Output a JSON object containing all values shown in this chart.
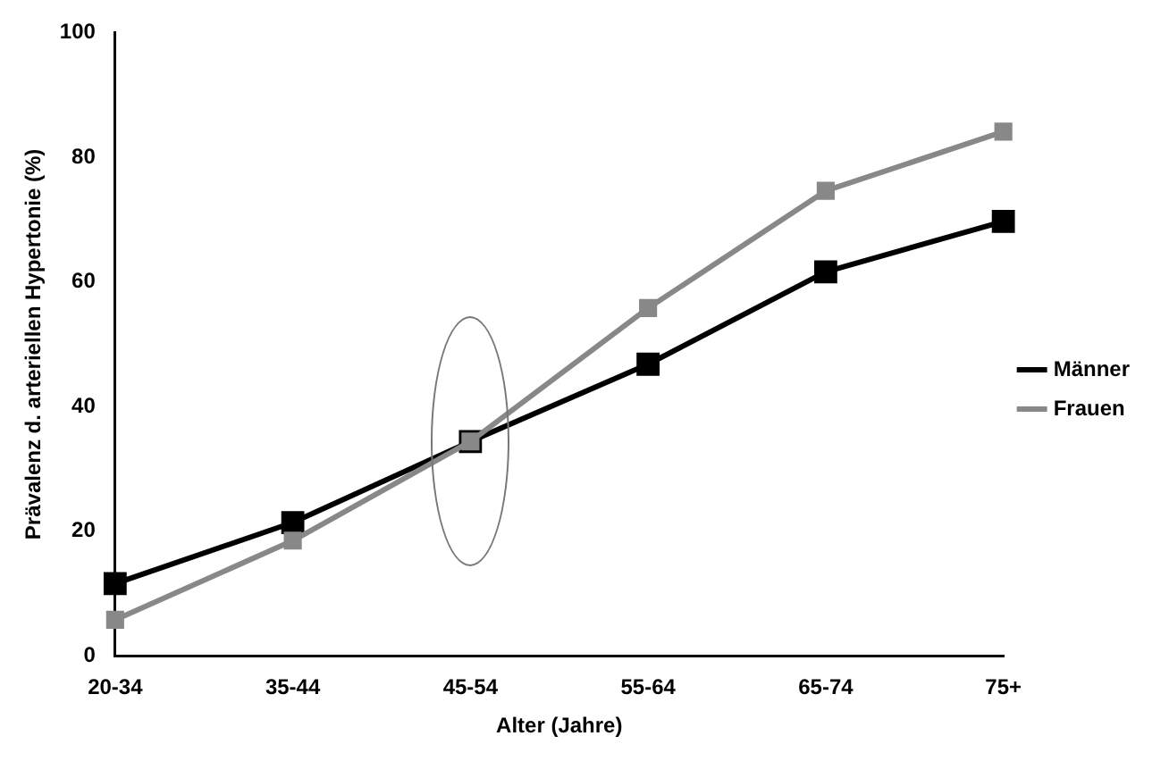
{
  "chart_data": {
    "type": "line",
    "xlabel": "Alter (Jahre)",
    "ylabel": "Prävalenz d. arteriellen Hypertonie (%)",
    "categories": [
      "20-34",
      "35-44",
      "45-54",
      "55-64",
      "65-74",
      "75+"
    ],
    "series": [
      {
        "name": "Männer",
        "color": "#000000",
        "values": [
          11.6,
          21.4,
          34.4,
          46.8,
          61.6,
          69.7
        ]
      },
      {
        "name": "Frauen",
        "color": "#888888",
        "values": [
          5.8,
          18.5,
          34.4,
          55.8,
          74.6,
          84.1
        ]
      }
    ],
    "ylim": [
      0,
      100
    ],
    "yticks": [
      0,
      20,
      40,
      60,
      80,
      100
    ],
    "grid": false,
    "legend": "right",
    "marker": "square",
    "line_style": "solid"
  }
}
